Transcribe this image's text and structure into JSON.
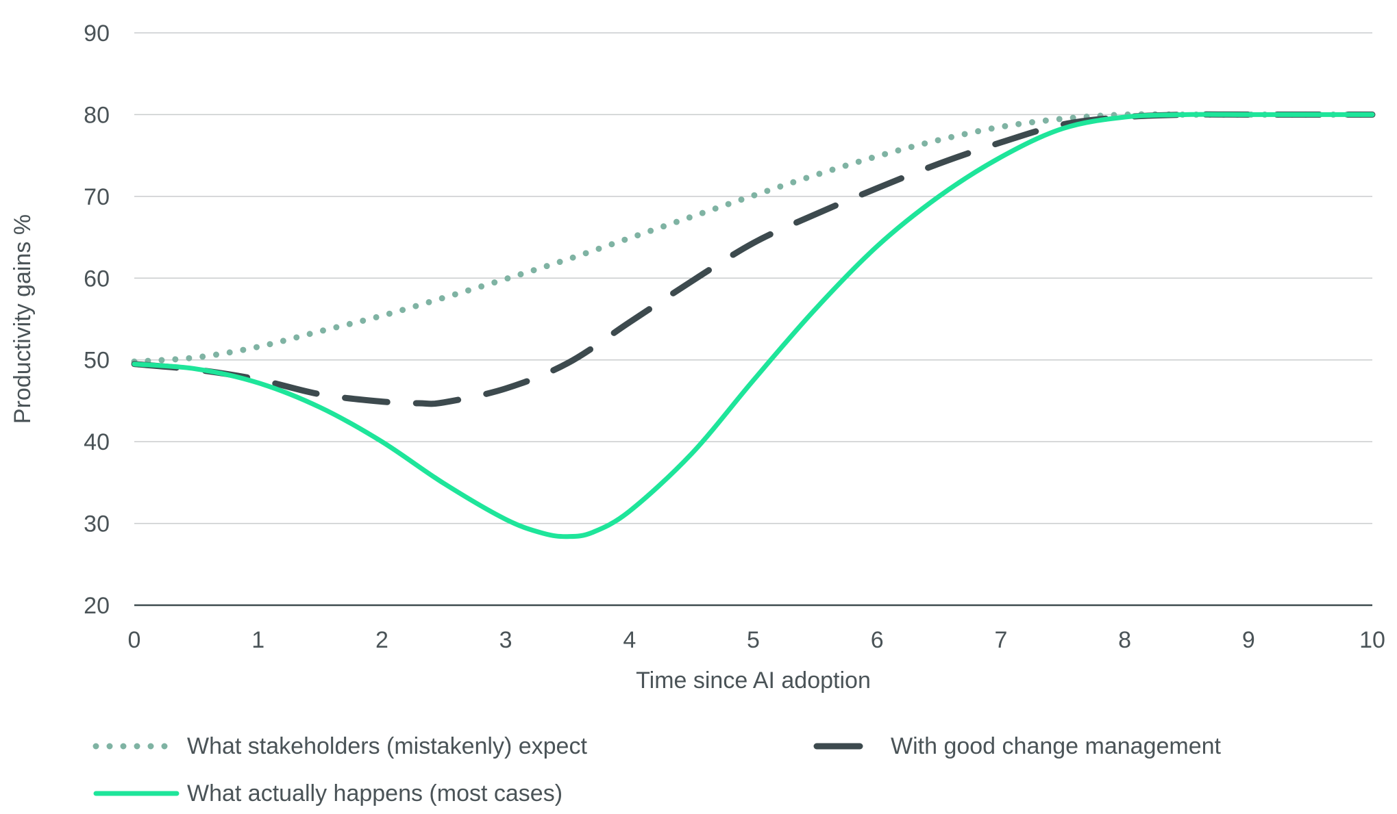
{
  "chart_data": {
    "type": "line",
    "title": "",
    "xlabel": "Time since AI adoption",
    "ylabel": "Productivity gains %",
    "xlim": [
      0,
      10
    ],
    "ylim": [
      20,
      90
    ],
    "xticks": [
      "0",
      "1",
      "2",
      "3",
      "4",
      "5",
      "6",
      "7",
      "8",
      "9",
      "10"
    ],
    "yticks": [
      "20",
      "30",
      "40",
      "50",
      "60",
      "70",
      "80",
      "90"
    ],
    "grid": "horizontal",
    "legend_position": "bottom",
    "series": [
      {
        "name": "What stakeholders (mistakenly) expect",
        "style": "dotted",
        "color": "#7fb3a3",
        "x": [
          0,
          0.5,
          1,
          1.5,
          2,
          2.5,
          3,
          3.5,
          4,
          4.5,
          5,
          5.5,
          6,
          6.5,
          7,
          7.5,
          8,
          8.5,
          9,
          9.5,
          10
        ],
        "y": [
          49.8,
          50.3,
          51.6,
          53.5,
          55.4,
          57.6,
          59.9,
          62.3,
          64.9,
          67.5,
          70.1,
          72.6,
          74.9,
          76.9,
          78.5,
          79.5,
          80,
          80,
          80,
          80,
          80
        ]
      },
      {
        "name": "With good change management",
        "style": "dashed",
        "color": "#3d4a4e",
        "x": [
          0,
          0.5,
          1,
          1.5,
          2,
          2.3,
          2.5,
          3,
          3.5,
          4,
          4.5,
          5,
          5.5,
          6,
          6.5,
          7,
          7.5,
          8,
          8.5,
          9,
          9.5,
          10
        ],
        "y": [
          49.5,
          48.8,
          47.6,
          45.8,
          44.9,
          44.7,
          44.8,
          46.5,
          49.6,
          54.6,
          59.6,
          64.3,
          67.8,
          71.0,
          74.0,
          76.6,
          78.8,
          79.7,
          80,
          80,
          80,
          80
        ]
      },
      {
        "name": "What actually happens (most cases)",
        "style": "solid",
        "color": "#1ee59a",
        "x": [
          0,
          0.5,
          1,
          1.5,
          2,
          2.5,
          3,
          3.3,
          3.5,
          3.7,
          4,
          4.5,
          5,
          5.5,
          6,
          6.5,
          7,
          7.5,
          8,
          8.5,
          9,
          9.5,
          10
        ],
        "y": [
          49.5,
          48.9,
          47.2,
          44.2,
          40.0,
          34.9,
          30.5,
          28.8,
          28.4,
          28.9,
          31.5,
          38.5,
          47.5,
          56.2,
          63.9,
          70.0,
          74.8,
          78.3,
          79.7,
          80,
          80,
          80,
          80
        ]
      }
    ]
  }
}
